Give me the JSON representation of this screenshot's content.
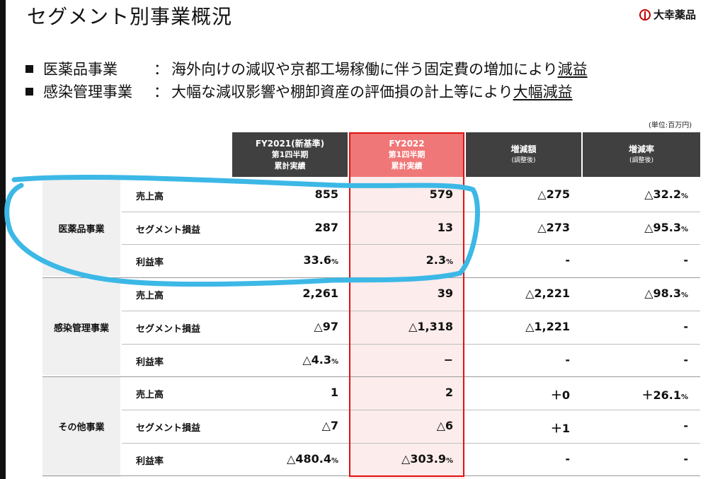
{
  "title": "セグメント別事業概況",
  "brand": "大幸薬品",
  "bullets": [
    {
      "segment": "医薬品事業",
      "colon": "：",
      "text": "海外向けの減収や京都工場稼働に伴う固定費の増加により",
      "emph": "減益"
    },
    {
      "segment": "感染管理事業",
      "colon": "：",
      "text": "大幅な減収影響や棚卸資産の評価損の計上等により",
      "emph": "大幅減益"
    }
  ],
  "unit": "(単位:百万円)",
  "headers": {
    "fy2021": {
      "l1": "FY2021(新基準)",
      "l2": "第1四半期",
      "l3": "累計実績"
    },
    "fy2022": {
      "l1": "FY2022",
      "l2": "第1四半期",
      "l3": "累計実績"
    },
    "diff": {
      "l1": "増減額",
      "l2": "(調整後)"
    },
    "rate": {
      "l1": "増減率",
      "l2": "(調整後)"
    }
  },
  "segments": [
    {
      "name": "医薬品事業",
      "rows": [
        {
          "label": "売上高",
          "fy2021": "855",
          "fy2021_pct": "",
          "fy2022": "579",
          "fy2022_pct": "",
          "diff": "△275",
          "rate": "△32.2",
          "rate_pct": "%"
        },
        {
          "label": "セグメント損益",
          "fy2021": "287",
          "fy2021_pct": "",
          "fy2022": "13",
          "fy2022_pct": "",
          "diff": "△273",
          "rate": "△95.3",
          "rate_pct": "%"
        },
        {
          "label": "利益率",
          "fy2021": "33.6",
          "fy2021_pct": "%",
          "fy2022": "2.3",
          "fy2022_pct": "%",
          "diff": "-",
          "rate": "-",
          "rate_pct": ""
        }
      ]
    },
    {
      "name": "感染管理事業",
      "rows": [
        {
          "label": "売上高",
          "fy2021": "2,261",
          "fy2021_pct": "",
          "fy2022": "39",
          "fy2022_pct": "",
          "diff": "△2,221",
          "rate": "△98.3",
          "rate_pct": "%"
        },
        {
          "label": "セグメント損益",
          "fy2021": "△97",
          "fy2021_pct": "",
          "fy2022": "△1,318",
          "fy2022_pct": "",
          "diff": "△1,221",
          "rate": "-",
          "rate_pct": ""
        },
        {
          "label": "利益率",
          "fy2021": "△4.3",
          "fy2021_pct": "%",
          "fy2022": "−",
          "fy2022_pct": "",
          "diff": "-",
          "rate": "-",
          "rate_pct": ""
        }
      ]
    },
    {
      "name": "その他事業",
      "rows": [
        {
          "label": "売上高",
          "fy2021": "1",
          "fy2021_pct": "",
          "fy2022": "2",
          "fy2022_pct": "",
          "diff": "＋0",
          "rate": "＋26.1",
          "rate_pct": "%"
        },
        {
          "label": "セグメント損益",
          "fy2021": "△7",
          "fy2021_pct": "",
          "fy2022": "△6",
          "fy2022_pct": "",
          "diff": "＋1",
          "rate": "-",
          "rate_pct": ""
        },
        {
          "label": "利益率",
          "fy2021": "△480.4",
          "fy2021_pct": "%",
          "fy2022": "△303.9",
          "fy2022_pct": "%",
          "diff": "-",
          "rate": "-",
          "rate_pct": ""
        }
      ]
    }
  ],
  "colors": {
    "header": "#404040",
    "fy2022_header": "#f07777",
    "fy2022_fill": "#fdecec",
    "highlight_box": "#e01010",
    "annotation": "#3cb8e6"
  }
}
